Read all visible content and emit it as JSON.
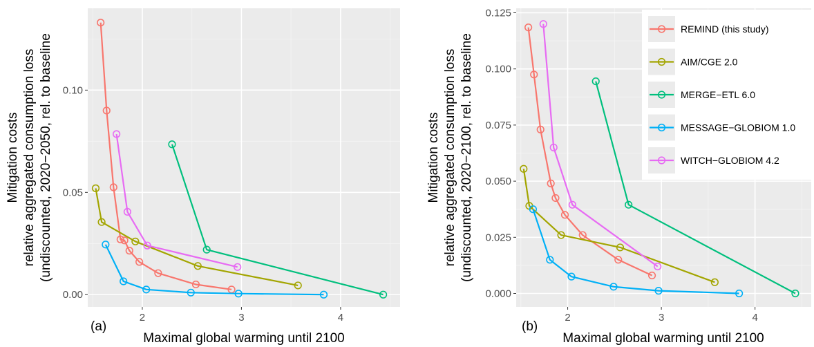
{
  "colors": {
    "panel_bg": "#ebebeb",
    "grid_major": "#ffffff",
    "grid_minor": "#f5f5f5"
  },
  "legend": {
    "placement": "top-right of panel (b)"
  },
  "chart_data": [
    {
      "type": "line",
      "panel_label": "(a)",
      "xlabel": "Maximal global warming until 2100",
      "ylabel_lines": [
        "Mitigation costs",
        "relative aggregated consumption loss",
        "(undiscounted, 2020−2050, rel. to baseline"
      ],
      "xlim": [
        1.45,
        4.6
      ],
      "ylim": [
        -0.006,
        0.14
      ],
      "xticks": [
        2,
        3,
        4
      ],
      "xtick_labels": [
        "2",
        "3",
        "4"
      ],
      "yticks": [
        0,
        0.05,
        0.1
      ],
      "ytick_labels": [
        "0.00",
        "0.05",
        "0.10"
      ],
      "grid": true,
      "series": [
        {
          "name": "REMIND (this study)",
          "color": "#f8766d",
          "x": [
            1.58,
            1.64,
            1.71,
            1.78,
            1.82,
            1.87,
            1.97,
            2.16,
            2.54,
            2.9
          ],
          "y": [
            0.133,
            0.09,
            0.0525,
            0.027,
            0.0265,
            0.0215,
            0.016,
            0.0105,
            0.005,
            0.0025
          ]
        },
        {
          "name": "AIM/CGE 2.0",
          "color": "#a3a500",
          "x": [
            1.53,
            1.59,
            1.93,
            2.56,
            3.57
          ],
          "y": [
            0.052,
            0.0355,
            0.026,
            0.014,
            0.0045
          ]
        },
        {
          "name": "MERGE−ETL 6.0",
          "color": "#00bf7d",
          "x": [
            2.3,
            2.65,
            4.43
          ],
          "y": [
            0.0735,
            0.022,
            0.0
          ]
        },
        {
          "name": "MESSAGE−GLOBIOM 1.0",
          "color": "#00b0f6",
          "x": [
            1.63,
            1.81,
            2.04,
            2.49,
            2.97,
            3.83
          ],
          "y": [
            0.0245,
            0.0065,
            0.0025,
            0.001,
            0.0005,
            0.0
          ]
        },
        {
          "name": "WITCH−GLOBIOM 4.2",
          "color": "#e76bf3",
          "x": [
            1.74,
            1.85,
            2.05,
            2.96
          ],
          "y": [
            0.0785,
            0.0405,
            0.024,
            0.0135
          ]
        }
      ]
    },
    {
      "type": "line",
      "panel_label": "(b)",
      "xlabel": "Maximal global warming until 2100",
      "ylabel_lines": [
        "Mitigation costs",
        "relative aggregated consumption loss",
        "(undiscounted, 2020−2100, rel. to baseline"
      ],
      "xlim": [
        1.45,
        4.6
      ],
      "ylim": [
        -0.006,
        0.127
      ],
      "xticks": [
        2,
        3,
        4
      ],
      "xtick_labels": [
        "2",
        "3",
        "4"
      ],
      "yticks": [
        0,
        0.025,
        0.05,
        0.075,
        0.1,
        0.125
      ],
      "ytick_labels": [
        "0.000",
        "0.025",
        "0.050",
        "0.075",
        "0.100",
        "0.125"
      ],
      "grid": true,
      "series": [
        {
          "name": "REMIND (this study)",
          "color": "#f8766d",
          "x": [
            1.58,
            1.64,
            1.71,
            1.82,
            1.87,
            1.97,
            2.16,
            2.54,
            2.9
          ],
          "y": [
            0.1185,
            0.0975,
            0.073,
            0.049,
            0.0425,
            0.035,
            0.026,
            0.015,
            0.008
          ]
        },
        {
          "name": "AIM/CGE 2.0",
          "color": "#a3a500",
          "x": [
            1.53,
            1.59,
            1.93,
            2.56,
            3.57
          ],
          "y": [
            0.0555,
            0.039,
            0.026,
            0.0205,
            0.005
          ]
        },
        {
          "name": "MERGE−ETL 6.0",
          "color": "#00bf7d",
          "x": [
            2.3,
            2.65,
            4.43
          ],
          "y": [
            0.0945,
            0.0395,
            0.0
          ]
        },
        {
          "name": "MESSAGE−GLOBIOM 1.0",
          "color": "#00b0f6",
          "x": [
            1.63,
            1.81,
            2.04,
            2.49,
            2.97,
            3.83
          ],
          "y": [
            0.0375,
            0.015,
            0.0075,
            0.003,
            0.0012,
            0.0
          ]
        },
        {
          "name": "WITCH−GLOBIOM 4.2",
          "color": "#e76bf3",
          "x": [
            1.74,
            1.85,
            2.05,
            2.96
          ],
          "y": [
            0.12,
            0.065,
            0.0395,
            0.012
          ]
        }
      ]
    }
  ]
}
